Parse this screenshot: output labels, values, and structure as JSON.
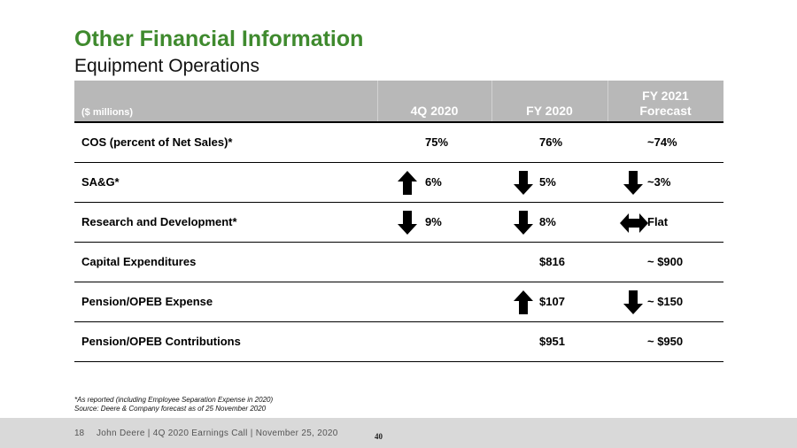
{
  "title": "Other Financial Information",
  "subtitle": "Equipment Operations",
  "table": {
    "unit_label": "($ millions)",
    "columns": [
      "4Q 2020",
      "FY 2020",
      "FY 2021",
      "Forecast"
    ],
    "rows": [
      {
        "label": "COS (percent of Net Sales)*",
        "q4_2020": "75%",
        "fy_2020": "76%",
        "fy_2021": "~74%",
        "q4_arrow": "",
        "fy2020_arrow": "",
        "fy2021_arrow": ""
      },
      {
        "label": "SA&G*",
        "q4_2020": "6%",
        "fy_2020": "5%",
        "fy_2021": "~3%",
        "q4_arrow": "up-arrow-icon",
        "fy2020_arrow": "down-arrow-icon",
        "fy2021_arrow": "down-arrow-icon"
      },
      {
        "label": "Research and Development*",
        "q4_2020": "9%",
        "fy_2020": "8%",
        "fy_2021": "Flat",
        "q4_arrow": "down-arrow-icon",
        "fy2020_arrow": "down-arrow-icon",
        "fy2021_arrow": "left-right-arrow-icon"
      },
      {
        "label": "Capital Expenditures",
        "q4_2020": "",
        "fy_2020": "$816",
        "fy_2021": "~ $900",
        "q4_arrow": "",
        "fy2020_arrow": "",
        "fy2021_arrow": ""
      },
      {
        "label": "Pension/OPEB Expense",
        "q4_2020": "",
        "fy_2020": "$107",
        "fy_2021": "~ $150",
        "q4_arrow": "",
        "fy2020_arrow": "up-arrow-icon",
        "fy2021_arrow": "down-arrow-icon"
      },
      {
        "label": "Pension/OPEB Contributions",
        "q4_2020": "",
        "fy_2020": "$951",
        "fy_2021": "~ $950",
        "q4_arrow": "",
        "fy2020_arrow": "",
        "fy2021_arrow": ""
      }
    ]
  },
  "footnotes": {
    "line1": "*As reported (including Employee Separation Expense in 2020)",
    "line2": "Source: Deere & Company forecast as of 25 November 2020"
  },
  "footer": {
    "page": "18",
    "caption": "John Deere | 4Q 2020 Earnings Call | November 25, 2020",
    "number": "40"
  },
  "colors": {
    "title_green": "#3f8a2e",
    "header_gray": "#b8b8b8",
    "footer_gray": "#d9d9d9"
  }
}
